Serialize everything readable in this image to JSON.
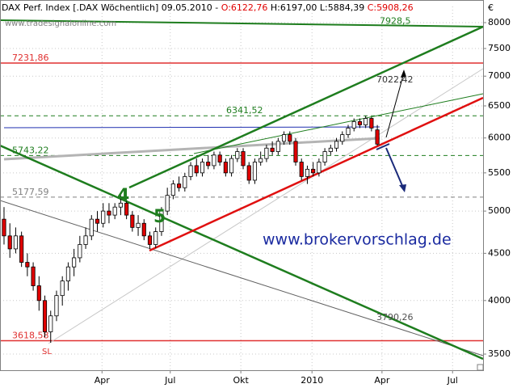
{
  "chart_data": {
    "type": "candlestick",
    "title": "DAX Perf. Index [.DAX  Wöchentlich] 09.05.2010 - ",
    "ohlc_labels": [
      "O:6122,76",
      "H:6197,00",
      "L:5884,39",
      "C:5908,26"
    ],
    "watermark": "www.tradesignalonline.com",
    "currency": "€",
    "log_scale": true,
    "grid": true,
    "up_color": "#ffffff",
    "down_color": "#e00000",
    "open": [
      4900,
      4700,
      4550,
      4700,
      4400,
      4350,
      4150,
      4000,
      3700,
      3850,
      4050,
      4200,
      4350,
      4450,
      4600,
      4700,
      4900,
      4850,
      5000,
      4950,
      5050,
      5100,
      4950,
      4800,
      4850,
      4700,
      4600,
      4750,
      5000,
      5200,
      5350,
      5300,
      5450,
      5600,
      5500,
      5650,
      5600,
      5750,
      5650,
      5500,
      5700,
      5800,
      5600,
      5400,
      5650,
      5700,
      5850,
      5800,
      5950,
      6050,
      5950,
      5650,
      5450,
      5550,
      5500,
      5650,
      5800,
      5850,
      5950,
      6050,
      6150,
      6250,
      6200,
      6300,
      6122.76
    ],
    "high": [
      5050,
      4850,
      4800,
      4750,
      4500,
      4400,
      4250,
      4050,
      3900,
      4100,
      4250,
      4400,
      4550,
      4700,
      4800,
      4950,
      5000,
      5100,
      5100,
      5100,
      5200,
      5150,
      5000,
      4950,
      4900,
      4750,
      4800,
      5050,
      5300,
      5400,
      5450,
      5500,
      5650,
      5700,
      5700,
      5750,
      5800,
      5800,
      5700,
      5750,
      5850,
      5850,
      5650,
      5700,
      5800,
      5900,
      5950,
      6000,
      6100,
      6100,
      6000,
      5700,
      5600,
      5650,
      5700,
      5850,
      5900,
      6000,
      6100,
      6200,
      6300,
      6300,
      6340,
      6320,
      6197
    ],
    "low": [
      4600,
      4450,
      4500,
      4350,
      4250,
      4100,
      3900,
      3650,
      3600,
      3800,
      3950,
      4100,
      4250,
      4400,
      4550,
      4650,
      4750,
      4800,
      4850,
      4900,
      4950,
      4900,
      4750,
      4700,
      4650,
      4550,
      4560,
      4700,
      4950,
      5150,
      5250,
      5250,
      5400,
      5450,
      5450,
      5550,
      5550,
      5600,
      5450,
      5450,
      5650,
      5550,
      5350,
      5350,
      5600,
      5650,
      5750,
      5750,
      5900,
      5900,
      5600,
      5400,
      5350,
      5450,
      5450,
      5600,
      5750,
      5800,
      5900,
      6000,
      6100,
      6150,
      6150,
      6100,
      5884.39
    ],
    "close": [
      4700,
      4550,
      4700,
      4400,
      4350,
      4150,
      4000,
      3700,
      3850,
      4050,
      4200,
      4350,
      4450,
      4600,
      4700,
      4900,
      4850,
      5000,
      4950,
      5050,
      5100,
      4950,
      4800,
      4850,
      4700,
      4600,
      4750,
      5000,
      5200,
      5350,
      5300,
      5450,
      5600,
      5500,
      5650,
      5600,
      5750,
      5650,
      5500,
      5700,
      5800,
      5600,
      5400,
      5650,
      5700,
      5850,
      5800,
      5950,
      6050,
      5950,
      5650,
      5450,
      5550,
      5500,
      5650,
      5800,
      5850,
      5950,
      6050,
      6150,
      6250,
      6200,
      6300,
      6150,
      5908.26
    ],
    "xlim": [
      -0.69,
      82.13
    ],
    "xticks": [
      {
        "value": 16.8,
        "label": "Apr"
      },
      {
        "value": 28.5,
        "label": "Jul"
      },
      {
        "value": 40.6,
        "label": "Okt"
      },
      {
        "value": 52.8,
        "label": "2010"
      },
      {
        "value": 64.8,
        "label": "Apr"
      },
      {
        "value": 76.9,
        "label": "Jul"
      }
    ],
    "ylim": [
      3362,
      8329
    ],
    "yticks": [
      3500,
      4000,
      4500,
      5000,
      5500,
      6000,
      6500,
      7000,
      7500,
      8000
    ],
    "levels": [
      {
        "value": 7928.5,
        "label": "7928,5",
        "color": "#1e7d1e"
      },
      {
        "value": 7231.86,
        "label": "7231,86",
        "color": "#e03030"
      },
      {
        "value": 6341.52,
        "label": "6341,52",
        "color": "#1e7d1e"
      },
      {
        "value": 5743.22,
        "label": "5743,22",
        "color": "#1e7d1e"
      },
      {
        "value": 5177.59,
        "label": "5177,59",
        "color": "#808080"
      },
      {
        "value": 3618.58,
        "label": "3618,58",
        "color": "#e03030"
      }
    ],
    "annotations": {
      "sl": "SL",
      "wave4": "4",
      "wave5": "5",
      "site": "www.brokervorschlag.de",
      "target_up": "7022,42",
      "target_low": "3790,26"
    }
  }
}
